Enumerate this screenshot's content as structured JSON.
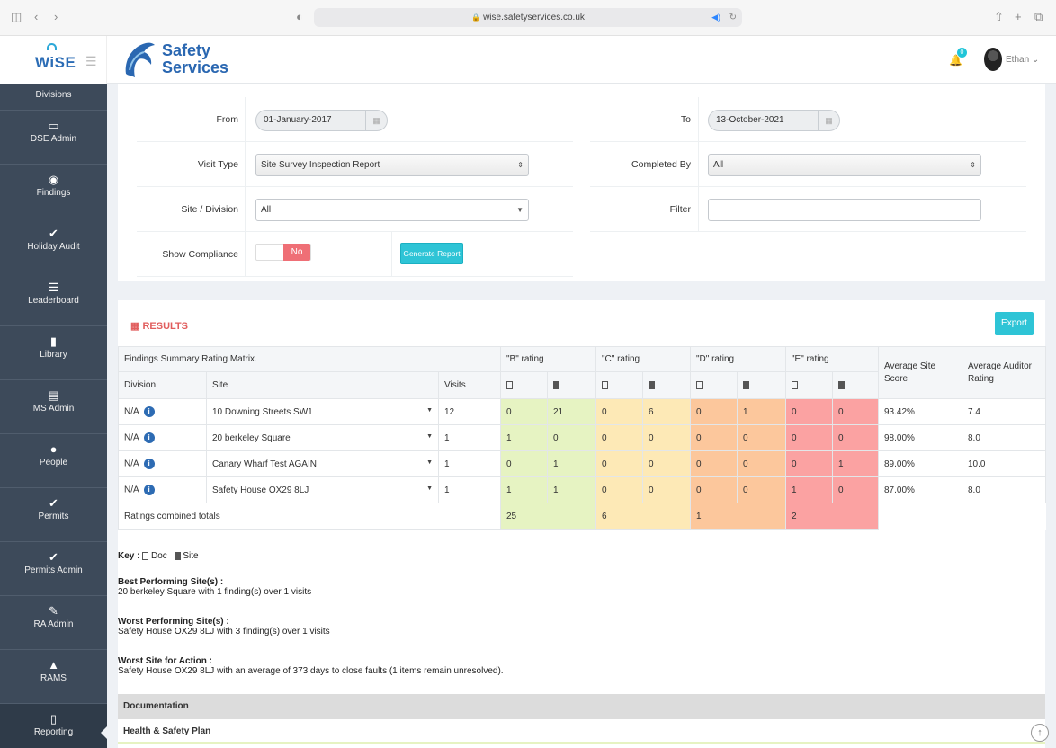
{
  "browser": {
    "url": "wise.safetyservices.co.uk"
  },
  "header": {
    "app_logo": "WiSE",
    "company_line1": "Safety",
    "company_line2": "Services",
    "notif_count": "0",
    "user_name": "Ethan"
  },
  "sidebar": {
    "items": [
      {
        "label": "Divisions",
        "icon": "building-icon"
      },
      {
        "label": "DSE Admin",
        "icon": "monitor-icon"
      },
      {
        "label": "Findings",
        "icon": "eye-icon"
      },
      {
        "label": "Holiday Audit",
        "icon": "check-icon"
      },
      {
        "label": "Leaderboard",
        "icon": "list-icon"
      },
      {
        "label": "Library",
        "icon": "book-icon"
      },
      {
        "label": "MS Admin",
        "icon": "list-icon"
      },
      {
        "label": "People",
        "icon": "users-icon"
      },
      {
        "label": "Permits",
        "icon": "check-icon"
      },
      {
        "label": "Permits Admin",
        "icon": "check-icon"
      },
      {
        "label": "RA Admin",
        "icon": "pencil-icon"
      },
      {
        "label": "RAMS",
        "icon": "warning-icon"
      },
      {
        "label": "Reporting",
        "icon": "document-icon"
      }
    ]
  },
  "filters": {
    "from_label": "From",
    "from_value": "01-January-2017",
    "to_label": "To",
    "to_value": "13-October-2021",
    "visit_type_label": "Visit Type",
    "visit_type_value": "Site Survey Inspection Report",
    "completed_by_label": "Completed By",
    "completed_by_value": "All",
    "site_label": "Site / Division",
    "site_value": "All",
    "filter_label": "Filter",
    "filter_value": "",
    "compliance_label": "Show Compliance",
    "compliance_value": "No",
    "generate_label": "Generate Report"
  },
  "results": {
    "title": "RESULTS",
    "export_label": "Export",
    "matrix_title": "Findings Summary Rating Matrix.",
    "headers": {
      "b": "\"B\" rating",
      "c": "\"C\" rating",
      "d": "\"D\" rating",
      "e": "\"E\" rating",
      "avg_site": "Average Site Score",
      "avg_auditor": "Average Auditor Rating",
      "division": "Division",
      "site": "Site",
      "visits": "Visits"
    },
    "rows": [
      {
        "division": "N/A",
        "site": "10 Downing Streets SW1",
        "visits": "12",
        "b_doc": "0",
        "b_site": "21",
        "c_doc": "0",
        "c_site": "6",
        "d_doc": "0",
        "d_site": "1",
        "e_doc": "0",
        "e_site": "0",
        "score": "93.42%",
        "auditor": "7.4"
      },
      {
        "division": "N/A",
        "site": "20 berkeley Square",
        "visits": "1",
        "b_doc": "1",
        "b_site": "0",
        "c_doc": "0",
        "c_site": "0",
        "d_doc": "0",
        "d_site": "0",
        "e_doc": "0",
        "e_site": "0",
        "score": "98.00%",
        "auditor": "8.0"
      },
      {
        "division": "N/A",
        "site": "Canary Wharf Test AGAIN",
        "visits": "1",
        "b_doc": "0",
        "b_site": "1",
        "c_doc": "0",
        "c_site": "0",
        "d_doc": "0",
        "d_site": "0",
        "e_doc": "0",
        "e_site": "1",
        "score": "89.00%",
        "auditor": "10.0"
      },
      {
        "division": "N/A",
        "site": "Safety House OX29 8LJ",
        "visits": "1",
        "b_doc": "1",
        "b_site": "1",
        "c_doc": "0",
        "c_site": "0",
        "d_doc": "0",
        "d_site": "0",
        "e_doc": "1",
        "e_site": "0",
        "score": "87.00%",
        "auditor": "8.0"
      }
    ],
    "totals": {
      "label": "Ratings combined totals",
      "b": "25",
      "c": "6",
      "d": "1",
      "e": "2"
    },
    "key": {
      "label": "Key :",
      "doc": "Doc",
      "site": "Site"
    },
    "best": {
      "title": "Best Performing Site(s) :",
      "text": "20 berkeley Square with 1 finding(s) over 1 visits"
    },
    "worst": {
      "title": "Worst Performing Site(s) :",
      "text": "Safety House OX29 8LJ with 3 finding(s) over 1 visits"
    },
    "action": {
      "title": "Worst Site for Action :",
      "text": "Safety House OX29 8LJ with an average of 373 days to close faults (1 items remain unresolved)."
    },
    "documentation": "Documentation",
    "health_plan": "Health & Safety Plan"
  },
  "colors": {
    "accent": "#2ec4d6",
    "sidebar": "#3d4a5a",
    "b": "#e6f3c2",
    "c": "#fde9b6",
    "d": "#fcc79c",
    "e": "#fba2a2"
  }
}
